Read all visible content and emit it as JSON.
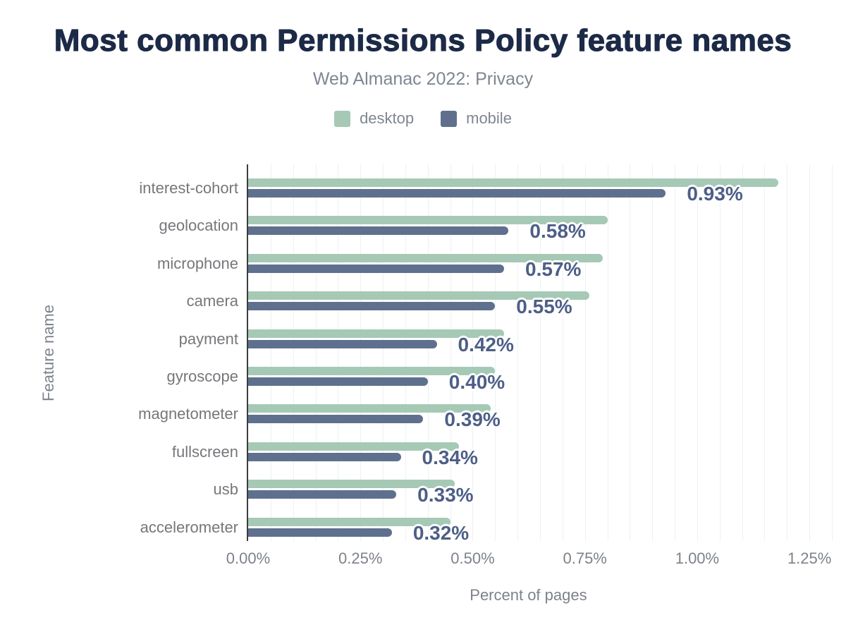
{
  "header": {
    "title": "Most common Permissions Policy feature names",
    "subtitle": "Web Almanac 2022: Privacy"
  },
  "colors": {
    "title": "#1c2a47",
    "muted_text": "#7e8691",
    "category_text": "#76777b",
    "data_label_text": "#4d5f87",
    "axis_line": "#3c3d40",
    "gridline": "#eef0f3",
    "desktop": "#a6c9b6",
    "mobile": "#5f708e"
  },
  "chart_data": {
    "type": "bar",
    "orientation": "horizontal",
    "title": "Most common Permissions Policy feature names",
    "subtitle": "Web Almanac 2022: Privacy",
    "categories": [
      "interest-cohort",
      "geolocation",
      "microphone",
      "camera",
      "payment",
      "gyroscope",
      "magnetometer",
      "fullscreen",
      "usb",
      "accelerometer"
    ],
    "series": [
      {
        "name": "desktop",
        "color": "#a6c9b6",
        "values": [
          1.18,
          0.8,
          0.79,
          0.76,
          0.57,
          0.55,
          0.54,
          0.47,
          0.46,
          0.45
        ]
      },
      {
        "name": "mobile",
        "color": "#5f708e",
        "values": [
          0.93,
          0.58,
          0.57,
          0.55,
          0.42,
          0.4,
          0.39,
          0.34,
          0.33,
          0.32
        ]
      }
    ],
    "data_labels": [
      "0.93%",
      "0.58%",
      "0.57%",
      "0.55%",
      "0.42%",
      "0.40%",
      "0.39%",
      "0.34%",
      "0.33%",
      "0.32%"
    ],
    "data_labels_series": "mobile",
    "xlabel": "Percent of pages",
    "ylabel": "Feature name",
    "x_ticks": [
      "0.00%",
      "0.25%",
      "0.50%",
      "0.75%",
      "1.00%",
      "1.25%"
    ],
    "x_tick_values": [
      0,
      0.25,
      0.5,
      0.75,
      1.0,
      1.25
    ],
    "xlim": [
      0,
      1.3
    ],
    "grid": true,
    "grid_step": 0.05,
    "legend_position": "top"
  }
}
